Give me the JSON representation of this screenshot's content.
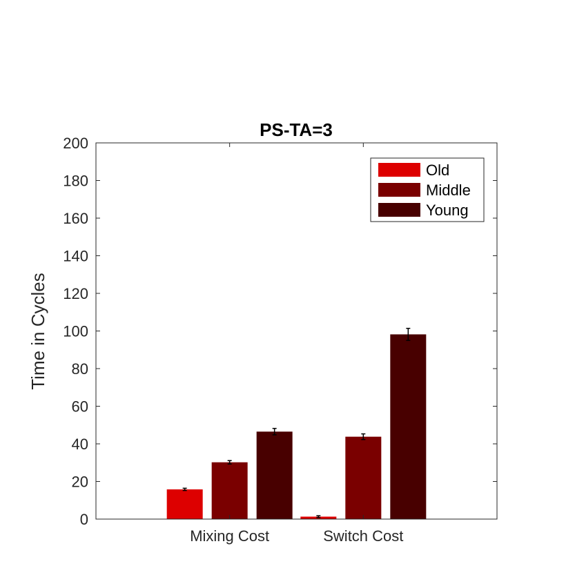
{
  "chart_data": {
    "type": "bar",
    "title": "PS-TA=3",
    "xlabel": "",
    "ylabel": "Time in Cycles",
    "ylim": [
      0,
      200
    ],
    "yticks": [
      0,
      20,
      40,
      60,
      80,
      100,
      120,
      140,
      160,
      180,
      200
    ],
    "categories": [
      "Mixing Cost",
      "Switch Cost"
    ],
    "series": [
      {
        "name": "Old",
        "color": "#dd0000",
        "values": [
          15.8,
          1.3
        ],
        "errors": [
          0.6,
          0.5
        ]
      },
      {
        "name": "Middle",
        "color": "#7a0000",
        "values": [
          30.2,
          43.8
        ],
        "errors": [
          0.9,
          1.5
        ]
      },
      {
        "name": "Young",
        "color": "#480000",
        "values": [
          46.5,
          98.2
        ],
        "errors": [
          1.7,
          3.2
        ]
      }
    ],
    "legend_position": "top-right",
    "grid": false
  }
}
